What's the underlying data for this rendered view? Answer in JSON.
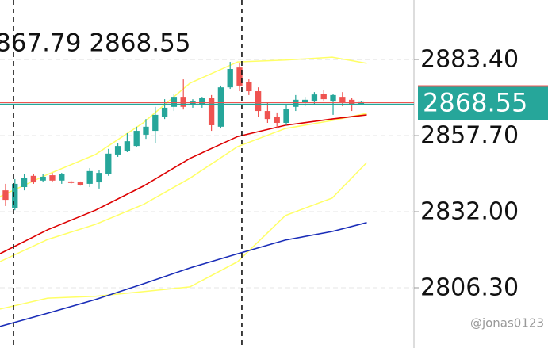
{
  "chart_data": {
    "type": "candlestick",
    "annotation": "867.79 2868.55",
    "watermark": "@jonas0123",
    "up_color": "#26a69a",
    "down_color": "#ef5350",
    "xlim": [
      -0.59,
      43.64
    ],
    "ylim": [
      2785.95,
      2903.5
    ],
    "yticks": [
      {
        "value": 2806.3,
        "label": "2806.30"
      },
      {
        "value": 2832,
        "label": "2832.00"
      },
      {
        "value": 2857.7,
        "label": "2857.70"
      },
      {
        "value": 2883.4,
        "label": "2883.40"
      }
    ],
    "grid": true,
    "last_price": 2868.55,
    "markers_x": [
      0.85,
      25.25
    ],
    "ohlc": [
      [
        2839.2,
        2841.4,
        2833.9,
        2836.0
      ],
      [
        2833.3,
        2843.0,
        2832.5,
        2841.4
      ],
      [
        2840.3,
        2844.6,
        2839.2,
        2843.5
      ],
      [
        2844.1,
        2844.6,
        2841.4,
        2841.9
      ],
      [
        2842.5,
        2844.6,
        2841.9,
        2843.8
      ],
      [
        2844.3,
        2845.1,
        2841.9,
        2842.5
      ],
      [
        2842.5,
        2845.1,
        2841.4,
        2844.6
      ],
      [
        2842.2,
        2842.5,
        2841.4,
        2841.7
      ],
      [
        2841.9,
        2842.2,
        2840.8,
        2841.1
      ],
      [
        2841.4,
        2846.7,
        2840.3,
        2845.7
      ],
      [
        2841.9,
        2846.2,
        2839.8,
        2845.1
      ],
      [
        2844.6,
        2853.2,
        2844.1,
        2851.6
      ],
      [
        2851.3,
        2855.3,
        2850.5,
        2854.2
      ],
      [
        2852.6,
        2858.5,
        2852.1,
        2855.8
      ],
      [
        2854.2,
        2860.7,
        2853.7,
        2859.3
      ],
      [
        2858.0,
        2863.3,
        2856.6,
        2860.7
      ],
      [
        2859.3,
        2867.4,
        2855.3,
        2864.7
      ],
      [
        2863.9,
        2870.0,
        2863.3,
        2867.1
      ],
      [
        2867.4,
        2871.9,
        2866.0,
        2870.8
      ],
      [
        2870.8,
        2876.7,
        2866.5,
        2867.4
      ],
      [
        2868.2,
        2870.0,
        2867.1,
        2869.2
      ],
      [
        2868.4,
        2870.8,
        2867.1,
        2870.3
      ],
      [
        2870.3,
        2871.4,
        2859.3,
        2861.2
      ],
      [
        2860.7,
        2874.6,
        2860.1,
        2874.0
      ],
      [
        2874.0,
        2882.6,
        2873.5,
        2880.2
      ],
      [
        2880.7,
        2882.1,
        2872.7,
        2874.6
      ],
      [
        2875.7,
        2876.7,
        2871.4,
        2872.7
      ],
      [
        2872.7,
        2874.0,
        2863.9,
        2866.0
      ],
      [
        2866.0,
        2868.7,
        2862.0,
        2863.3
      ],
      [
        2863.9,
        2865.5,
        2860.1,
        2862.0
      ],
      [
        2862.0,
        2868.2,
        2861.2,
        2866.8
      ],
      [
        2867.4,
        2871.4,
        2866.0,
        2869.8
      ],
      [
        2868.7,
        2870.8,
        2867.6,
        2869.8
      ],
      [
        2869.2,
        2872.4,
        2868.2,
        2871.6
      ],
      [
        2871.9,
        2873.0,
        2869.2,
        2870.0
      ],
      [
        2869.2,
        2871.9,
        2864.7,
        2871.4
      ],
      [
        2870.8,
        2872.4,
        2867.6,
        2868.7
      ],
      [
        2869.8,
        2870.3,
        2866.0,
        2867.9
      ],
      [
        2868.4,
        2869.2,
        2868.2,
        2869.0
      ]
    ],
    "line_x": [
      -0.6,
      4.5,
      9.6,
      14.7,
      19.7,
      24.8,
      29.9,
      34.9,
      38.6
    ],
    "lines": [
      {
        "color": "#ffff66",
        "values": [
          2837.1,
          2844.6,
          2851.3,
          2862.0,
          2875.4,
          2882.6,
          2883.2,
          2884.2,
          2882.1
        ]
      },
      {
        "color": "#ffff66",
        "values": [
          2815.1,
          2822.6,
          2827.7,
          2834.4,
          2843.3,
          2854.0,
          2860.1,
          2862.8,
          2865.2
        ]
      },
      {
        "color": "#ffff66",
        "values": [
          2799.1,
          2802.8,
          2803.4,
          2805.0,
          2806.6,
          2815.1,
          2830.7,
          2836.6,
          2848.6
        ]
      },
      {
        "color": "#dd0000",
        "values": [
          2817.8,
          2825.9,
          2832.5,
          2840.6,
          2850.0,
          2857.4,
          2861.2,
          2863.3,
          2864.7
        ]
      },
      {
        "color": "#1a2db8",
        "values": [
          2793.2,
          2797.7,
          2802.3,
          2807.6,
          2813.0,
          2817.8,
          2822.4,
          2825.3,
          2828.3
        ]
      }
    ]
  }
}
